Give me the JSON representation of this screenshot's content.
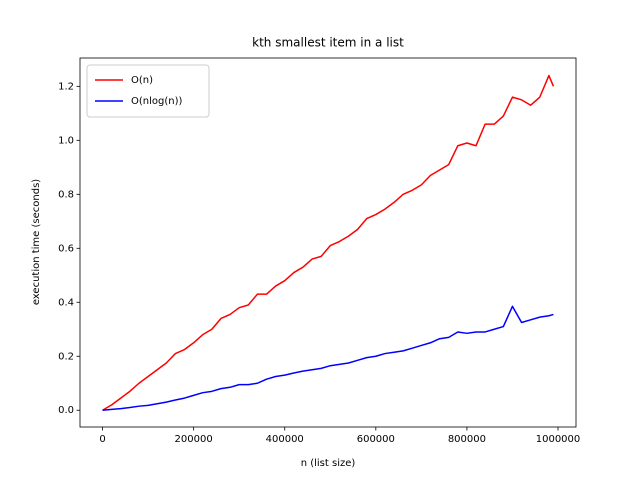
{
  "chart_data": {
    "type": "line",
    "title": "kth smallest item in a list",
    "xlabel": "n (list size)",
    "ylabel": "execution time (seconds)",
    "x": [
      0,
      20000,
      40000,
      60000,
      80000,
      100000,
      120000,
      140000,
      160000,
      180000,
      200000,
      220000,
      240000,
      260000,
      280000,
      300000,
      320000,
      340000,
      360000,
      380000,
      400000,
      420000,
      440000,
      460000,
      480000,
      500000,
      520000,
      540000,
      560000,
      580000,
      600000,
      620000,
      640000,
      660000,
      680000,
      700000,
      720000,
      740000,
      760000,
      780000,
      800000,
      820000,
      840000,
      860000,
      880000,
      900000,
      920000,
      940000,
      960000,
      980000,
      990000
    ],
    "series": [
      {
        "name": "O(n)",
        "color": "#ff0000",
        "values": [
          0.0,
          0.02,
          0.045,
          0.07,
          0.1,
          0.125,
          0.15,
          0.175,
          0.21,
          0.225,
          0.25,
          0.28,
          0.3,
          0.34,
          0.355,
          0.38,
          0.39,
          0.43,
          0.43,
          0.46,
          0.48,
          0.51,
          0.53,
          0.56,
          0.57,
          0.61,
          0.625,
          0.645,
          0.67,
          0.71,
          0.725,
          0.745,
          0.77,
          0.8,
          0.815,
          0.835,
          0.87,
          0.89,
          0.91,
          0.98,
          0.99,
          0.98,
          1.06,
          1.06,
          1.09,
          1.16,
          1.15,
          1.13,
          1.16,
          1.24,
          1.2
        ]
      },
      {
        "name": "O(nlog(n))",
        "color": "#0000ff",
        "values": [
          0.0,
          0.003,
          0.006,
          0.01,
          0.015,
          0.018,
          0.024,
          0.03,
          0.038,
          0.045,
          0.055,
          0.065,
          0.07,
          0.08,
          0.085,
          0.095,
          0.095,
          0.1,
          0.115,
          0.125,
          0.13,
          0.138,
          0.145,
          0.15,
          0.155,
          0.165,
          0.17,
          0.175,
          0.185,
          0.195,
          0.2,
          0.21,
          0.215,
          0.22,
          0.23,
          0.24,
          0.25,
          0.265,
          0.27,
          0.29,
          0.285,
          0.29,
          0.29,
          0.3,
          0.31,
          0.385,
          0.325,
          0.335,
          0.345,
          0.35,
          0.355
        ]
      }
    ],
    "xlim": [
      -49500,
      1039500
    ],
    "ylim": [
      -0.0621,
      1.305
    ],
    "xticks": [
      0,
      200000,
      400000,
      600000,
      800000,
      1000000
    ],
    "yticks": [
      {
        "value": 0.0,
        "label": "0.0"
      },
      0.2,
      0.4,
      0.6,
      0.8,
      {
        "value": 1.0,
        "label": "1.0"
      },
      1.2
    ],
    "legend": "upper left",
    "grid": false
  }
}
